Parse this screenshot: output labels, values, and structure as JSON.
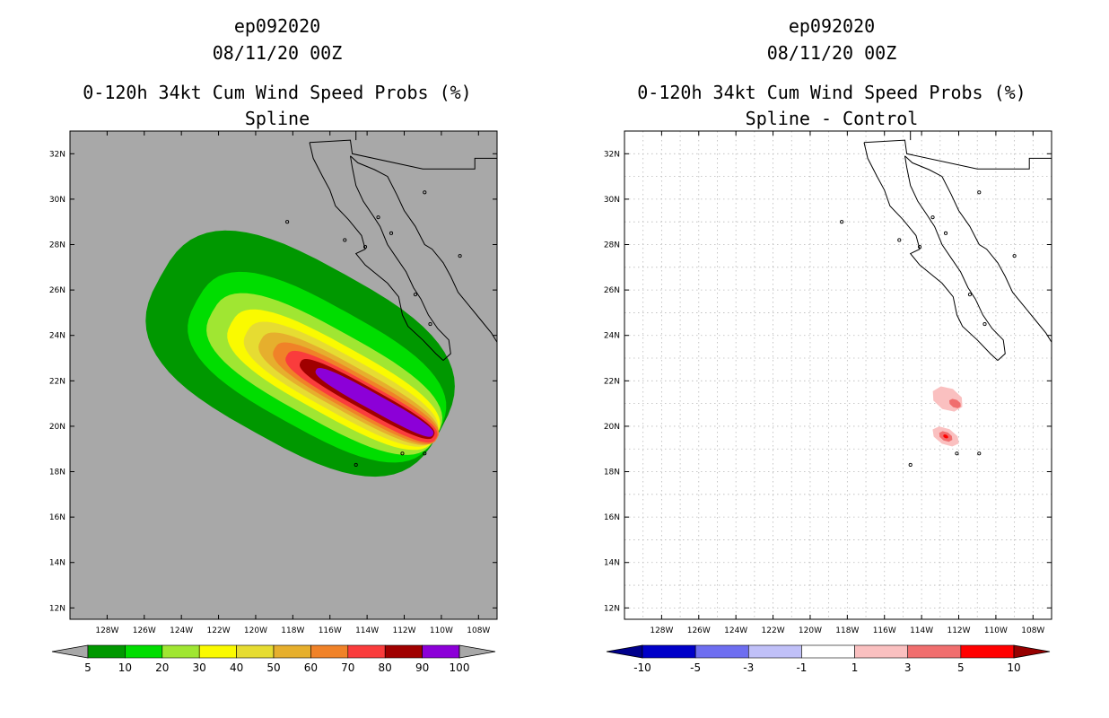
{
  "figure": {
    "left": {
      "title_lines": [
        "ep092020",
        "08/11/20 00Z",
        "0-120h 34kt Cum Wind Speed Probs (%)",
        "Spline"
      ],
      "colorbar": {
        "colors": [
          "#009800",
          "#00dd00",
          "#a0e632",
          "#fafa00",
          "#e6dc32",
          "#e6af2d",
          "#f08228",
          "#fa3c3c",
          "#a00000",
          "#8c00d8"
        ],
        "end_arrow_color": "#a8a8a8",
        "labels": [
          "5",
          "10",
          "20",
          "30",
          "40",
          "50",
          "60",
          "70",
          "80",
          "90",
          "100"
        ]
      }
    },
    "right": {
      "title_lines": [
        "ep092020",
        "08/11/20 00Z",
        "0-120h 34kt Cum Wind Speed Probs (%)",
        "Spline - Control"
      ],
      "colorbar": {
        "colors": [
          "#0000c8",
          "#6e6ef0",
          "#c0c0f8",
          "#ffffff",
          "#fac0c0",
          "#f06e6e",
          "#ff0000"
        ],
        "left_arrow_color": "#00008c",
        "right_arrow_color": "#960000",
        "labels": [
          "-10",
          "-5",
          "-3",
          "-1",
          "1",
          "3",
          "5",
          "10"
        ]
      }
    }
  },
  "chart_data": [
    {
      "type": "heatmap",
      "title": "0-120h 34kt Cum Wind Speed Probs (%)",
      "subtitle": "Spline",
      "storm": "ep092020",
      "init_time": "08/11/20 00Z",
      "xlim": [
        -130,
        -107
      ],
      "ylim": [
        11.5,
        33
      ],
      "x_ticks": [
        -128,
        -126,
        -124,
        -122,
        -120,
        -118,
        -116,
        -114,
        -112,
        -110,
        -108
      ],
      "x_tick_labels": [
        "128W",
        "126W",
        "124W",
        "122W",
        "120W",
        "118W",
        "116W",
        "114W",
        "112W",
        "110W",
        "108W"
      ],
      "y_ticks": [
        12,
        14,
        16,
        18,
        20,
        22,
        24,
        26,
        28,
        30,
        32
      ],
      "y_tick_labels": [
        "12N",
        "14N",
        "16N",
        "18N",
        "20N",
        "22N",
        "24N",
        "26N",
        "28N",
        "30N",
        "32N"
      ],
      "grid": false,
      "background": "#a8a8a8",
      "contour_levels": [
        5,
        10,
        20,
        30,
        40,
        50,
        60,
        70,
        80,
        90,
        100
      ],
      "contours": [
        {
          "level": 5,
          "color": "#009800",
          "center": [
            -117.6,
            23.2
          ],
          "half_length": 8.6,
          "half_width": 4.0
        },
        {
          "level": 10,
          "color": "#00dd00",
          "center": [
            -116.7,
            22.6
          ],
          "half_length": 7.4,
          "half_width": 2.75
        },
        {
          "level": 20,
          "color": "#a0e632",
          "center": [
            -116.3,
            22.3
          ],
          "half_length": 6.9,
          "half_width": 2.0
        },
        {
          "level": 30,
          "color": "#fafa00",
          "center": [
            -115.8,
            22.05
          ],
          "half_length": 6.3,
          "half_width": 1.55
        },
        {
          "level": 40,
          "color": "#e6dc32",
          "center": [
            -115.4,
            21.85
          ],
          "half_length": 5.8,
          "half_width": 1.25
        },
        {
          "level": 50,
          "color": "#e6af2d",
          "center": [
            -115.0,
            21.65
          ],
          "half_length": 5.4,
          "half_width": 1.0
        },
        {
          "level": 60,
          "color": "#f08228",
          "center": [
            -114.6,
            21.45
          ],
          "half_length": 5.0,
          "half_width": 0.82
        },
        {
          "level": 70,
          "color": "#fa3c3c",
          "center": [
            -114.3,
            21.3
          ],
          "half_length": 4.6,
          "half_width": 0.66
        },
        {
          "level": 80,
          "color": "#a00000",
          "center": [
            -114.0,
            21.2
          ],
          "half_length": 4.1,
          "half_width": 0.5
        },
        {
          "level": 90,
          "color": "#8c00d8",
          "center": [
            -113.6,
            21.05
          ],
          "half_length": 3.6,
          "half_width": 0.36
        }
      ]
    },
    {
      "type": "heatmap",
      "title": "0-120h 34kt Cum Wind Speed Probs (%)",
      "subtitle": "Spline - Control",
      "storm": "ep092020",
      "init_time": "08/11/20 00Z",
      "xlim": [
        -130,
        -107
      ],
      "ylim": [
        11.5,
        33
      ],
      "x_ticks": [
        -128,
        -126,
        -124,
        -122,
        -120,
        -118,
        -116,
        -114,
        -112,
        -110,
        -108
      ],
      "x_tick_labels": [
        "128W",
        "126W",
        "124W",
        "122W",
        "120W",
        "118W",
        "116W",
        "114W",
        "112W",
        "110W",
        "108W"
      ],
      "y_ticks": [
        12,
        14,
        16,
        18,
        20,
        22,
        24,
        26,
        28,
        30,
        32
      ],
      "y_tick_labels": [
        "12N",
        "14N",
        "16N",
        "18N",
        "20N",
        "22N",
        "24N",
        "26N",
        "28N",
        "30N",
        "32N"
      ],
      "grid": true,
      "background": "#ffffff",
      "contour_levels": [
        -10,
        -5,
        -3,
        -1,
        1,
        3,
        5,
        10
      ],
      "blobs": [
        {
          "lon": -112.6,
          "lat": 21.2,
          "half_width": 0.9,
          "half_height": 0.5,
          "color": "#fac0c0",
          "value": 1
        },
        {
          "lon": -112.2,
          "lat": 21.0,
          "half_width": 0.35,
          "half_height": 0.18,
          "color": "#f06e6e",
          "value": 3
        },
        {
          "lon": -112.7,
          "lat": 19.55,
          "half_width": 0.8,
          "half_height": 0.36,
          "color": "#fac0c0",
          "value": 1
        },
        {
          "lon": -112.7,
          "lat": 19.55,
          "half_width": 0.4,
          "half_height": 0.2,
          "color": "#f06e6e",
          "value": 3
        },
        {
          "lon": -112.7,
          "lat": 19.55,
          "half_width": 0.15,
          "half_height": 0.08,
          "color": "#ff0000",
          "value": 5
        }
      ]
    }
  ],
  "coastline": {
    "baja_west": [
      [
        -117.1,
        32.5
      ],
      [
        -116.9,
        31.8
      ],
      [
        -116.4,
        31.0
      ],
      [
        -116.0,
        30.4
      ],
      [
        -115.7,
        29.7
      ],
      [
        -115.0,
        29.1
      ],
      [
        -114.3,
        28.4
      ],
      [
        -114.1,
        27.8
      ],
      [
        -114.6,
        27.6
      ],
      [
        -114.1,
        27.1
      ],
      [
        -113.5,
        26.7
      ],
      [
        -112.9,
        26.3
      ],
      [
        -112.3,
        25.7
      ],
      [
        -112.1,
        24.9
      ],
      [
        -111.8,
        24.4
      ],
      [
        -111.0,
        23.8
      ],
      [
        -110.3,
        23.2
      ],
      [
        -109.9,
        22.9
      ]
    ],
    "baja_east": [
      [
        -109.9,
        22.9
      ],
      [
        -109.5,
        23.2
      ],
      [
        -109.6,
        23.8
      ],
      [
        -110.2,
        24.3
      ],
      [
        -110.7,
        24.9
      ],
      [
        -111.1,
        25.6
      ],
      [
        -111.5,
        26.1
      ],
      [
        -111.9,
        26.8
      ],
      [
        -112.4,
        27.4
      ],
      [
        -112.9,
        28.0
      ],
      [
        -113.3,
        28.8
      ],
      [
        -113.7,
        29.3
      ],
      [
        -114.2,
        29.9
      ],
      [
        -114.6,
        30.6
      ],
      [
        -114.8,
        31.4
      ],
      [
        -114.9,
        31.9
      ]
    ],
    "mainland": [
      [
        -114.9,
        31.9
      ],
      [
        -114.5,
        31.6
      ],
      [
        -113.6,
        31.3
      ],
      [
        -112.9,
        31.0
      ],
      [
        -112.4,
        30.2
      ],
      [
        -112.0,
        29.5
      ],
      [
        -111.4,
        28.8
      ],
      [
        -110.9,
        28.0
      ],
      [
        -110.5,
        27.8
      ],
      [
        -109.9,
        27.2
      ],
      [
        -109.5,
        26.6
      ],
      [
        -109.1,
        25.9
      ],
      [
        -108.5,
        25.3
      ],
      [
        -107.9,
        24.7
      ],
      [
        -107.3,
        24.1
      ],
      [
        -107.0,
        23.7
      ]
    ],
    "border_us_mx": [
      [
        -117.1,
        32.5
      ],
      [
        -114.9,
        32.6
      ],
      [
        -114.8,
        32.0
      ],
      [
        -111.0,
        31.33
      ],
      [
        -108.2,
        31.33
      ],
      [
        -108.2,
        31.8
      ],
      [
        -107.0,
        31.8
      ]
    ],
    "border_ca_az": [
      [
        -114.6,
        33.0
      ],
      [
        -114.6,
        32.6
      ]
    ],
    "islands": [
      [
        -118.3,
        29.0
      ],
      [
        -115.2,
        28.2
      ],
      [
        -114.1,
        27.9
      ],
      [
        -113.4,
        29.2
      ],
      [
        -112.7,
        28.5
      ],
      [
        -111.4,
        25.8
      ],
      [
        -110.6,
        24.5
      ],
      [
        -110.9,
        18.8
      ],
      [
        -114.6,
        18.3
      ],
      [
        -112.1,
        18.8
      ],
      [
        -109.0,
        27.5
      ],
      [
        -110.9,
        30.3
      ]
    ]
  }
}
